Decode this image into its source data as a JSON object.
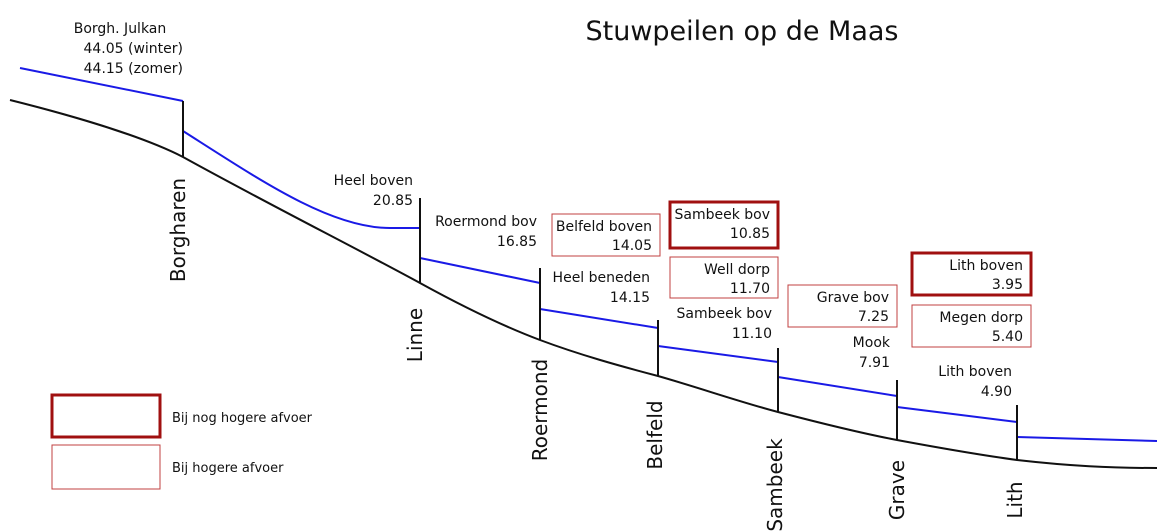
{
  "title": "Stuwpeilen op de Maas",
  "weirs": [
    "Borgharen",
    "Linne",
    "Roermond",
    "Belfeld",
    "Sambeek",
    "Grave",
    "Lith"
  ],
  "levels": [
    {
      "lines": [
        "Borgh. Julkan",
        "44.05 (winter)",
        "44.15 (zomer)"
      ]
    },
    {
      "lines": [
        "Heel boven",
        "20.85"
      ]
    },
    {
      "lines": [
        "Roermond bov",
        "16.85"
      ]
    },
    {
      "lines": [
        "Heel beneden",
        "14.15"
      ]
    },
    {
      "lines": [
        "Sambeek bov",
        "11.10"
      ]
    },
    {
      "lines": [
        "Mook",
        "7.91"
      ]
    },
    {
      "lines": [
        "Lith boven",
        "4.90"
      ]
    }
  ],
  "boxes": [
    {
      "lines": [
        "Belfeld boven",
        "14.05"
      ],
      "kind": "Bij hogere afvoer"
    },
    {
      "lines": [
        "Sambeek bov",
        "10.85"
      ],
      "kind": "Bij nog hogere afvoer"
    },
    {
      "lines": [
        "Well dorp",
        "11.70"
      ],
      "kind": "Bij hogere afvoer"
    },
    {
      "lines": [
        "Grave bov",
        "7.25"
      ],
      "kind": "Bij hogere afvoer"
    },
    {
      "lines": [
        "Lith boven",
        "3.95"
      ],
      "kind": "Bij nog hogere afvoer"
    },
    {
      "lines": [
        "Megen dorp",
        "5.40"
      ],
      "kind": "Bij hogere afvoer"
    }
  ],
  "legend": [
    "Bij nog hogere afvoer",
    "Bij hogere afvoer"
  ]
}
